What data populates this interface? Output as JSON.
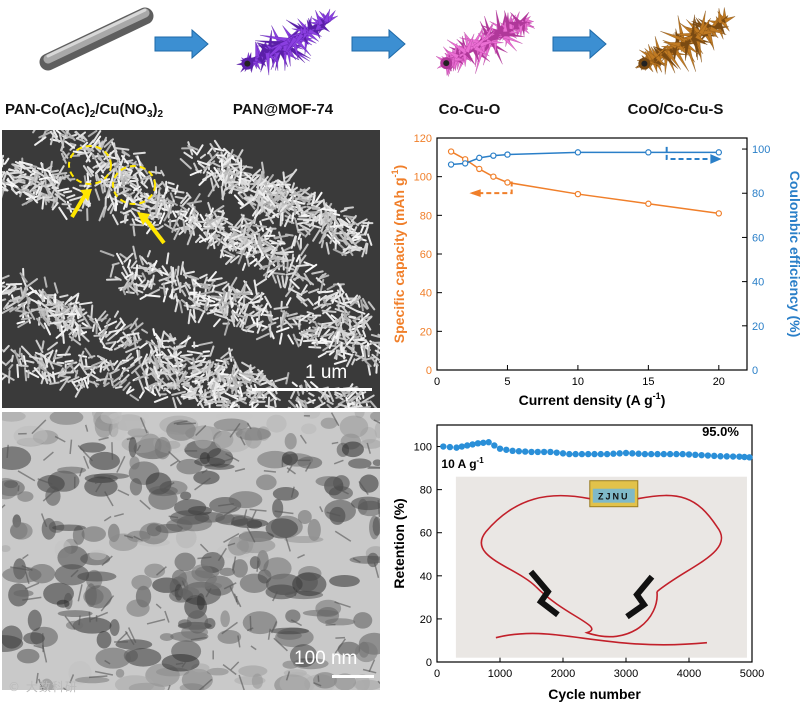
{
  "stages": [
    {
      "label_main": "PAN-Co(Ac)",
      "label_sub1": "2",
      "label_mid": "/Cu(NO",
      "label_sub2": "3",
      "label_end": ")",
      "label_sub3": "2",
      "color": "#8a8a8a"
    },
    {
      "label": "PAN@MOF-74",
      "color": "#8a3fe0"
    },
    {
      "label": "Co-Cu-O",
      "color": "#ea6fd3"
    },
    {
      "label": "CoO/Co-Cu-S",
      "color": "#c07a22"
    }
  ],
  "sem_scale": "1 um",
  "tem_scale": "100 nm",
  "watermark": "大数科研",
  "device_label": "ZJNU",
  "chart_data": [
    {
      "type": "line",
      "x": [
        1,
        2,
        3,
        4,
        5,
        10,
        15,
        20
      ],
      "series": [
        {
          "name": "",
          "axis": "left",
          "color": "#f07f2a",
          "values": [
            113,
            109,
            104,
            100,
            97,
            91,
            86,
            81
          ]
        },
        {
          "name": "",
          "axis": "right",
          "color": "#2a7fc8",
          "values": [
            93,
            93.5,
            96,
            97,
            97.5,
            98.5,
            98.5,
            98.5
          ]
        }
      ],
      "xlabel": "Current density (A g",
      "xlabel_sup": "-1",
      "xlabel_end": ")",
      "ylabel": "Specific capacity (mAh g",
      "ylabel_sup": "-1",
      "ylabel_end": ")",
      "y2label": "Coulombic efficiency (%)",
      "xlim": [
        0,
        22
      ],
      "ylim": [
        0,
        120
      ],
      "y2lim": [
        0,
        105
      ],
      "xticks": [
        "0",
        "5",
        "10",
        "15",
        "20"
      ],
      "yticks": [
        "0",
        "20",
        "40",
        "60",
        "80",
        "100",
        "120"
      ],
      "y2ticks": [
        "0",
        "20",
        "40",
        "60",
        "80",
        "100"
      ]
    },
    {
      "type": "scatter",
      "series": [
        {
          "name": "",
          "color": "#2a8fd8",
          "points": [
            [
              100,
              100
            ],
            [
              310,
              99.5
            ],
            [
              480,
              100.5
            ],
            [
              650,
              101.5
            ],
            [
              820,
              102
            ],
            [
              1000,
              99
            ],
            [
              1200,
              98
            ],
            [
              1500,
              97.5
            ],
            [
              1800,
              97.5
            ],
            [
              2100,
              96.5
            ],
            [
              2400,
              96.5
            ],
            [
              2700,
              96.5
            ],
            [
              3000,
              97
            ],
            [
              3300,
              96.5
            ],
            [
              3600,
              96.5
            ],
            [
              3900,
              96.5
            ],
            [
              4200,
              96
            ],
            [
              4500,
              95.5
            ],
            [
              4800,
              95.3
            ],
            [
              4960,
              95
            ]
          ]
        }
      ],
      "annotation": "95.0%",
      "rate_label": "10 A g",
      "rate_sup": "-1",
      "xlabel": "Cycle number",
      "ylabel": "Retention (%)",
      "xlim": [
        0,
        5000
      ],
      "ylim": [
        0,
        110
      ],
      "xticks": [
        "0",
        "1000",
        "2000",
        "3000",
        "4000",
        "5000"
      ],
      "yticks": [
        "0",
        "20",
        "40",
        "60",
        "80",
        "100"
      ]
    }
  ]
}
